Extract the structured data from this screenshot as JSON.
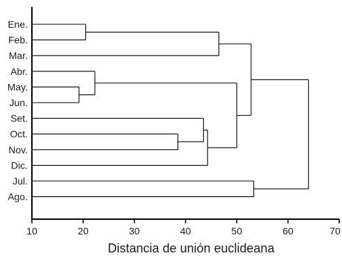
{
  "chart_data": {
    "type": "dendrogram",
    "title": "",
    "xlabel": "Distancia de unión euclideana",
    "ylabel": "",
    "xlim": [
      10,
      70
    ],
    "x_ticks": [
      10,
      20,
      30,
      40,
      50,
      60,
      70
    ],
    "leaves": [
      "Ene.",
      "Feb.",
      "Mar.",
      "Abr.",
      "May.",
      "Jun.",
      "Set.",
      "Oct.",
      "Nov.",
      "Dic.",
      "Jul.",
      "Ago."
    ],
    "merges": [
      {
        "id": "c1",
        "left": "Ene.",
        "right": "Feb.",
        "distance": 20.5
      },
      {
        "id": "c2",
        "left": "May.",
        "right": "Jun.",
        "distance": 19.2
      },
      {
        "id": "c3",
        "left": "Oct.",
        "right": "Nov.",
        "distance": 38.5
      },
      {
        "id": "c4",
        "left": "Abr.",
        "right": "c2",
        "distance": 22.3
      },
      {
        "id": "c5",
        "left": "Set.",
        "right": "c3",
        "distance": 43.5
      },
      {
        "id": "c6",
        "left": "c5",
        "right": "Dic.",
        "distance": 44.3
      },
      {
        "id": "c7",
        "left": "c1",
        "right": "Mar.",
        "distance": 46.5
      },
      {
        "id": "c8",
        "left": "c4",
        "right": "c6",
        "distance": 50.0
      },
      {
        "id": "c9",
        "left": "c7",
        "right": "c8",
        "distance": 52.8
      },
      {
        "id": "c10",
        "left": "Jul.",
        "right": "Ago.",
        "distance": 53.3
      },
      {
        "id": "c11",
        "left": "c9",
        "right": "c10",
        "distance": 64.0
      }
    ],
    "grid": false,
    "legend": "none"
  }
}
